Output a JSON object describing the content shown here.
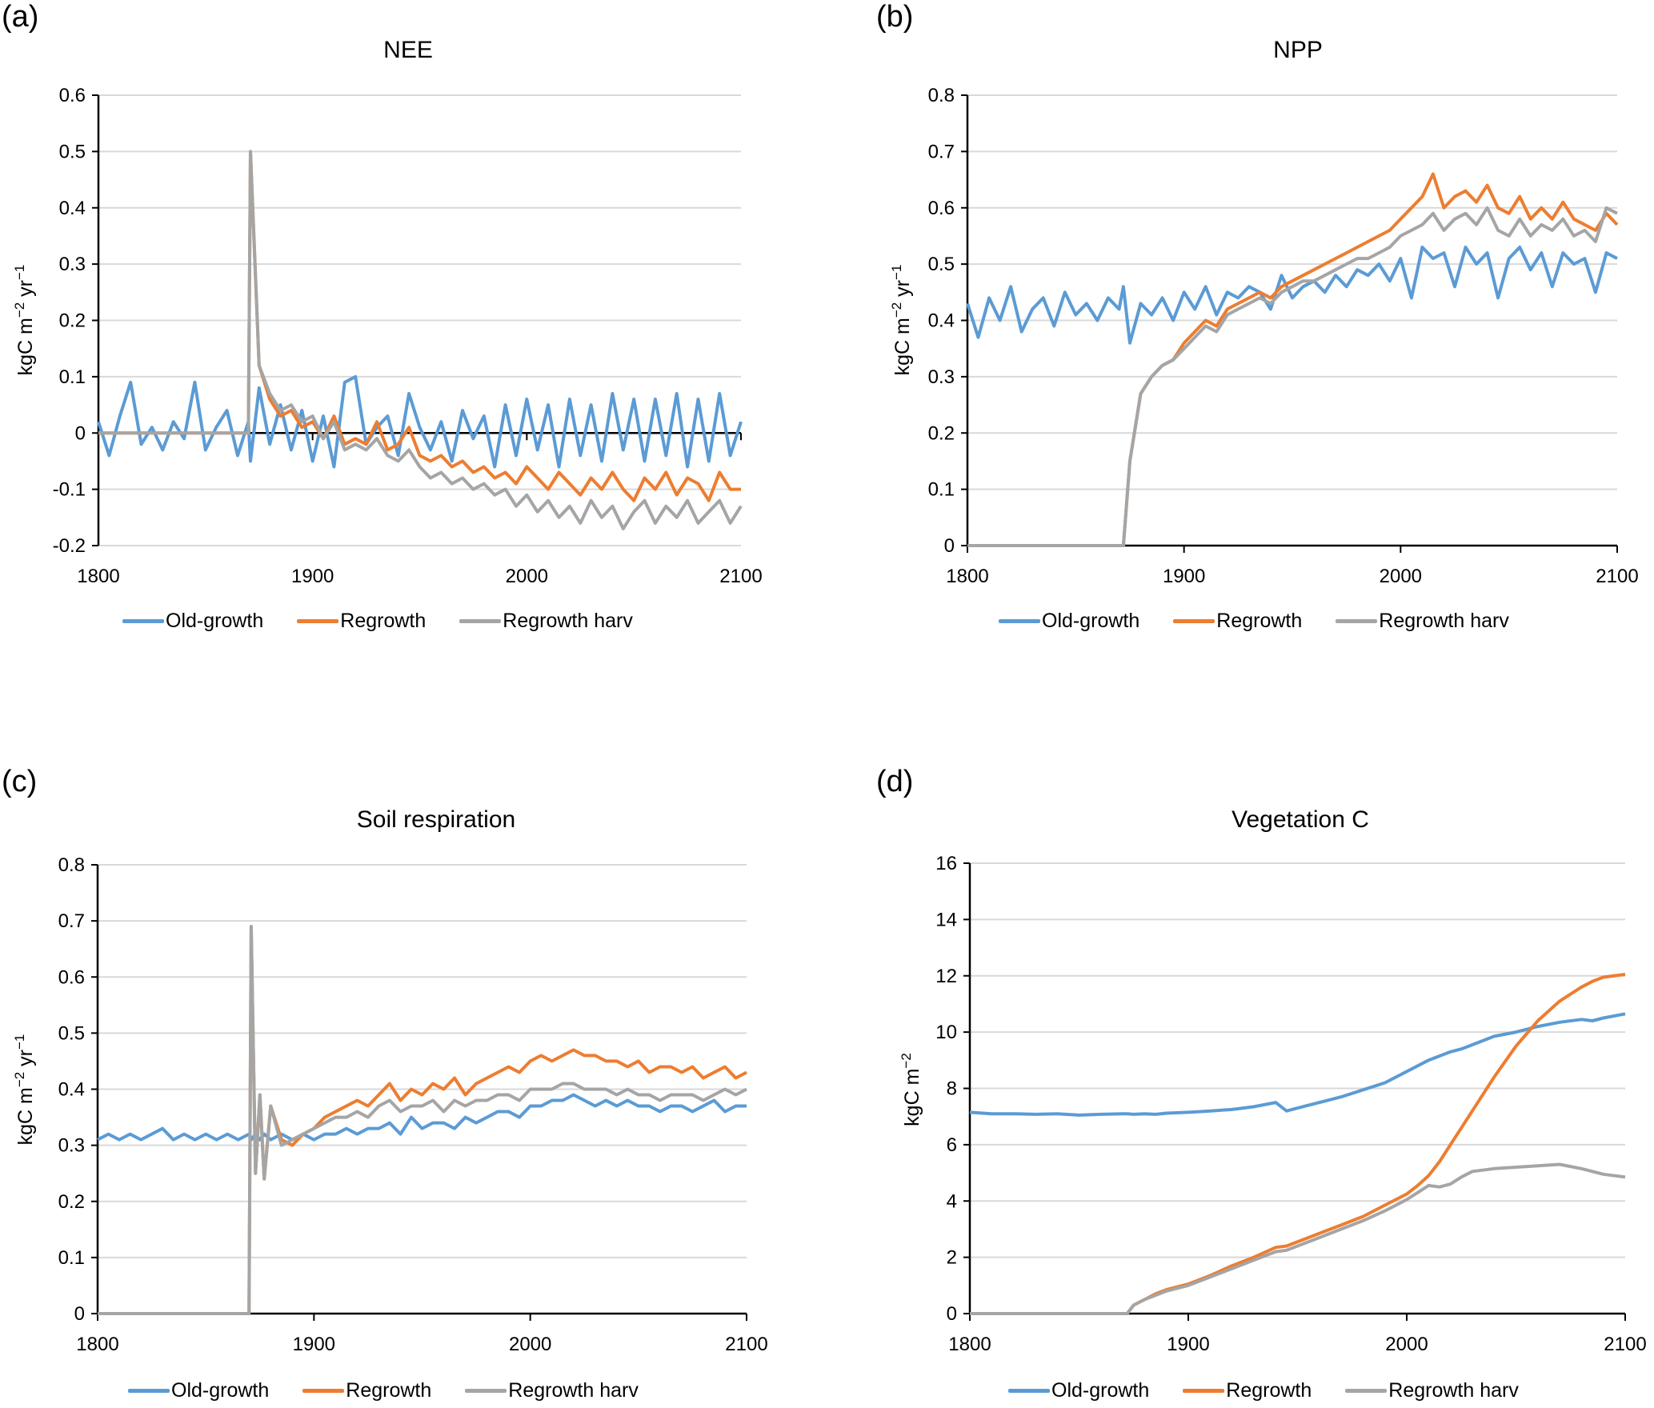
{
  "figure": {
    "legend_labels": [
      "Old-growth",
      "Regrowth",
      "Regrowth harv"
    ],
    "series_colors": {
      "Old-growth": "#5B9BD5",
      "Regrowth": "#ED7D31",
      "Regrowth harv": "#A5A5A5"
    }
  },
  "chart_data": [
    {
      "panel": "(a)",
      "type": "line",
      "title": "NEE",
      "xlabel": "",
      "ylabel": "kgC m-2 yr-1",
      "xlim": [
        1800,
        2100
      ],
      "ylim": [
        -0.2,
        0.6
      ],
      "xticks": [
        1800,
        1900,
        2000,
        2100
      ],
      "yticks": [
        -0.2,
        -0.1,
        0,
        0.1,
        0.2,
        0.3,
        0.4,
        0.5,
        0.6
      ],
      "ytick_labels": [
        "-0.2",
        "-0.1",
        "0",
        "0.1",
        "0.2",
        "0.3",
        "0.4",
        "0.5",
        "0.6"
      ],
      "zero_line": true,
      "grid": true,
      "legend": "bottom",
      "x": [
        1800,
        1805,
        1810,
        1815,
        1820,
        1825,
        1830,
        1835,
        1840,
        1845,
        1850,
        1855,
        1860,
        1865,
        1870,
        1871,
        1875,
        1880,
        1885,
        1890,
        1895,
        1900,
        1905,
        1910,
        1915,
        1920,
        1925,
        1930,
        1935,
        1940,
        1945,
        1950,
        1955,
        1960,
        1965,
        1970,
        1975,
        1980,
        1985,
        1990,
        1995,
        2000,
        2005,
        2010,
        2015,
        2020,
        2025,
        2030,
        2035,
        2040,
        2045,
        2050,
        2055,
        2060,
        2065,
        2070,
        2075,
        2080,
        2085,
        2090,
        2095,
        2100
      ],
      "series": [
        {
          "name": "Old-growth",
          "values": [
            0.02,
            -0.04,
            0.03,
            0.09,
            -0.02,
            0.01,
            -0.03,
            0.02,
            -0.01,
            0.09,
            -0.03,
            0.01,
            0.04,
            -0.04,
            0.02,
            -0.05,
            0.08,
            -0.02,
            0.05,
            -0.03,
            0.04,
            -0.05,
            0.03,
            -0.06,
            0.09,
            0.1,
            -0.02,
            0.01,
            0.03,
            -0.04,
            0.07,
            0.01,
            -0.03,
            0.02,
            -0.05,
            0.04,
            -0.01,
            0.03,
            -0.06,
            0.05,
            -0.04,
            0.06,
            -0.03,
            0.05,
            -0.06,
            0.06,
            -0.04,
            0.05,
            -0.05,
            0.07,
            -0.03,
            0.06,
            -0.05,
            0.06,
            -0.04,
            0.07,
            -0.06,
            0.06,
            -0.05,
            0.07,
            -0.04,
            0.02
          ]
        },
        {
          "name": "Regrowth",
          "values": [
            0,
            0,
            0,
            0,
            0,
            0,
            0,
            0,
            0,
            0,
            0,
            0,
            0,
            0,
            0,
            0.5,
            0.12,
            0.06,
            0.03,
            0.04,
            0.01,
            0.02,
            -0.01,
            0.03,
            -0.02,
            -0.01,
            -0.02,
            0.02,
            -0.03,
            -0.02,
            0.01,
            -0.04,
            -0.05,
            -0.04,
            -0.06,
            -0.05,
            -0.07,
            -0.06,
            -0.08,
            -0.07,
            -0.09,
            -0.06,
            -0.08,
            -0.1,
            -0.07,
            -0.09,
            -0.11,
            -0.08,
            -0.1,
            -0.07,
            -0.1,
            -0.12,
            -0.08,
            -0.1,
            -0.07,
            -0.11,
            -0.08,
            -0.09,
            -0.12,
            -0.07,
            -0.1,
            -0.1
          ]
        },
        {
          "name": "Regrowth harv",
          "values": [
            0,
            0,
            0,
            0,
            0,
            0,
            0,
            0,
            0,
            0,
            0,
            0,
            0,
            0,
            0,
            0.5,
            0.12,
            0.07,
            0.04,
            0.05,
            0.02,
            0.03,
            -0.01,
            0.02,
            -0.03,
            -0.02,
            -0.03,
            -0.01,
            -0.04,
            -0.05,
            -0.03,
            -0.06,
            -0.08,
            -0.07,
            -0.09,
            -0.08,
            -0.1,
            -0.09,
            -0.11,
            -0.1,
            -0.13,
            -0.11,
            -0.14,
            -0.12,
            -0.15,
            -0.13,
            -0.16,
            -0.12,
            -0.15,
            -0.13,
            -0.17,
            -0.14,
            -0.12,
            -0.16,
            -0.13,
            -0.15,
            -0.12,
            -0.16,
            -0.14,
            -0.12,
            -0.16,
            -0.13
          ]
        }
      ]
    },
    {
      "panel": "(b)",
      "type": "line",
      "title": "NPP",
      "xlabel": "",
      "ylabel": "kgC m-2 yr-1",
      "xlim": [
        1800,
        2100
      ],
      "ylim": [
        0,
        0.8
      ],
      "xticks": [
        1800,
        1900,
        2000,
        2100
      ],
      "yticks": [
        0,
        0.1,
        0.2,
        0.3,
        0.4,
        0.5,
        0.6,
        0.7,
        0.8
      ],
      "ytick_labels": [
        "0",
        "0.1",
        "0.2",
        "0.3",
        "0.4",
        "0.5",
        "0.6",
        "0.7",
        "0.8"
      ],
      "zero_line": false,
      "grid": true,
      "legend": "bottom",
      "x": [
        1800,
        1805,
        1810,
        1815,
        1820,
        1825,
        1830,
        1835,
        1840,
        1845,
        1850,
        1855,
        1860,
        1865,
        1870,
        1872,
        1875,
        1880,
        1885,
        1890,
        1895,
        1900,
        1905,
        1910,
        1915,
        1920,
        1925,
        1930,
        1935,
        1940,
        1945,
        1950,
        1955,
        1960,
        1965,
        1970,
        1975,
        1980,
        1985,
        1990,
        1995,
        2000,
        2005,
        2010,
        2015,
        2020,
        2025,
        2030,
        2035,
        2040,
        2045,
        2050,
        2055,
        2060,
        2065,
        2070,
        2075,
        2080,
        2085,
        2090,
        2095,
        2100
      ],
      "series": [
        {
          "name": "Old-growth",
          "values": [
            0.43,
            0.37,
            0.44,
            0.4,
            0.46,
            0.38,
            0.42,
            0.44,
            0.39,
            0.45,
            0.41,
            0.43,
            0.4,
            0.44,
            0.42,
            0.46,
            0.36,
            0.43,
            0.41,
            0.44,
            0.4,
            0.45,
            0.42,
            0.46,
            0.41,
            0.45,
            0.44,
            0.46,
            0.45,
            0.42,
            0.48,
            0.44,
            0.46,
            0.47,
            0.45,
            0.48,
            0.46,
            0.49,
            0.48,
            0.5,
            0.47,
            0.51,
            0.44,
            0.53,
            0.51,
            0.52,
            0.46,
            0.53,
            0.5,
            0.52,
            0.44,
            0.51,
            0.53,
            0.49,
            0.52,
            0.46,
            0.52,
            0.5,
            0.51,
            0.45,
            0.52,
            0.51
          ]
        },
        {
          "name": "Regrowth",
          "values": [
            0,
            0,
            0,
            0,
            0,
            0,
            0,
            0,
            0,
            0,
            0,
            0,
            0,
            0,
            0,
            0,
            0.15,
            0.27,
            0.3,
            0.32,
            0.33,
            0.36,
            0.38,
            0.4,
            0.39,
            0.42,
            0.43,
            0.44,
            0.45,
            0.44,
            0.46,
            0.47,
            0.48,
            0.49,
            0.5,
            0.51,
            0.52,
            0.53,
            0.54,
            0.55,
            0.56,
            0.58,
            0.6,
            0.62,
            0.66,
            0.6,
            0.62,
            0.63,
            0.61,
            0.64,
            0.6,
            0.59,
            0.62,
            0.58,
            0.6,
            0.58,
            0.61,
            0.58,
            0.57,
            0.56,
            0.59,
            0.57
          ]
        },
        {
          "name": "Regrowth harv",
          "values": [
            0,
            0,
            0,
            0,
            0,
            0,
            0,
            0,
            0,
            0,
            0,
            0,
            0,
            0,
            0,
            0,
            0.15,
            0.27,
            0.3,
            0.32,
            0.33,
            0.35,
            0.37,
            0.39,
            0.38,
            0.41,
            0.42,
            0.43,
            0.44,
            0.43,
            0.45,
            0.46,
            0.47,
            0.47,
            0.48,
            0.49,
            0.5,
            0.51,
            0.51,
            0.52,
            0.53,
            0.55,
            0.56,
            0.57,
            0.59,
            0.56,
            0.58,
            0.59,
            0.57,
            0.6,
            0.56,
            0.55,
            0.58,
            0.55,
            0.57,
            0.56,
            0.58,
            0.55,
            0.56,
            0.54,
            0.6,
            0.59
          ]
        }
      ]
    },
    {
      "panel": "(c)",
      "type": "line",
      "title": "Soil respiration",
      "xlabel": "",
      "ylabel": "kgC m-2 yr-1",
      "xlim": [
        1800,
        2100
      ],
      "ylim": [
        0,
        0.8
      ],
      "xticks": [
        1800,
        1900,
        2000,
        2100
      ],
      "yticks": [
        0,
        0.1,
        0.2,
        0.3,
        0.4,
        0.5,
        0.6,
        0.7,
        0.8
      ],
      "ytick_labels": [
        "0",
        "0.1",
        "0.2",
        "0.3",
        "0.4",
        "0.5",
        "0.6",
        "0.7",
        "0.8"
      ],
      "zero_line": false,
      "grid": true,
      "legend": "bottom",
      "x": [
        1800,
        1805,
        1810,
        1815,
        1820,
        1825,
        1830,
        1835,
        1840,
        1845,
        1850,
        1855,
        1860,
        1865,
        1870,
        1871,
        1873,
        1875,
        1877,
        1880,
        1885,
        1890,
        1895,
        1900,
        1905,
        1910,
        1915,
        1920,
        1925,
        1930,
        1935,
        1940,
        1945,
        1950,
        1955,
        1960,
        1965,
        1970,
        1975,
        1980,
        1985,
        1990,
        1995,
        2000,
        2005,
        2010,
        2015,
        2020,
        2025,
        2030,
        2035,
        2040,
        2045,
        2050,
        2055,
        2060,
        2065,
        2070,
        2075,
        2080,
        2085,
        2090,
        2095,
        2100
      ],
      "series": [
        {
          "name": "Old-growth",
          "values": [
            0.31,
            0.32,
            0.31,
            0.32,
            0.31,
            0.32,
            0.33,
            0.31,
            0.32,
            0.31,
            0.32,
            0.31,
            0.32,
            0.31,
            0.32,
            0.31,
            0.32,
            0.31,
            0.32,
            0.31,
            0.32,
            0.31,
            0.32,
            0.31,
            0.32,
            0.32,
            0.33,
            0.32,
            0.33,
            0.33,
            0.34,
            0.32,
            0.35,
            0.33,
            0.34,
            0.34,
            0.33,
            0.35,
            0.34,
            0.35,
            0.36,
            0.36,
            0.35,
            0.37,
            0.37,
            0.38,
            0.38,
            0.39,
            0.38,
            0.37,
            0.38,
            0.37,
            0.38,
            0.37,
            0.37,
            0.36,
            0.37,
            0.37,
            0.36,
            0.37,
            0.38,
            0.36,
            0.37,
            0.37
          ]
        },
        {
          "name": "Regrowth",
          "values": [
            0,
            0,
            0,
            0,
            0,
            0,
            0,
            0,
            0,
            0,
            0,
            0,
            0,
            0,
            0,
            0.69,
            0.25,
            0.39,
            0.24,
            0.37,
            0.31,
            0.3,
            0.32,
            0.33,
            0.35,
            0.36,
            0.37,
            0.38,
            0.37,
            0.39,
            0.41,
            0.38,
            0.4,
            0.39,
            0.41,
            0.4,
            0.42,
            0.39,
            0.41,
            0.42,
            0.43,
            0.44,
            0.43,
            0.45,
            0.46,
            0.45,
            0.46,
            0.47,
            0.46,
            0.46,
            0.45,
            0.45,
            0.44,
            0.45,
            0.43,
            0.44,
            0.44,
            0.43,
            0.44,
            0.42,
            0.43,
            0.44,
            0.42,
            0.43
          ]
        },
        {
          "name": "Regrowth harv",
          "values": [
            0,
            0,
            0,
            0,
            0,
            0,
            0,
            0,
            0,
            0,
            0,
            0,
            0,
            0,
            0,
            0.69,
            0.25,
            0.39,
            0.24,
            0.37,
            0.3,
            0.31,
            0.32,
            0.33,
            0.34,
            0.35,
            0.35,
            0.36,
            0.35,
            0.37,
            0.38,
            0.36,
            0.37,
            0.37,
            0.38,
            0.36,
            0.38,
            0.37,
            0.38,
            0.38,
            0.39,
            0.39,
            0.38,
            0.4,
            0.4,
            0.4,
            0.41,
            0.41,
            0.4,
            0.4,
            0.4,
            0.39,
            0.4,
            0.39,
            0.39,
            0.38,
            0.39,
            0.39,
            0.39,
            0.38,
            0.39,
            0.4,
            0.39,
            0.4
          ]
        }
      ]
    },
    {
      "panel": "(d)",
      "type": "line",
      "title": "Vegetation C",
      "xlabel": "",
      "ylabel": "kgC m-2",
      "xlim": [
        1800,
        2100
      ],
      "ylim": [
        0,
        16
      ],
      "xticks": [
        1800,
        1900,
        2000,
        2100
      ],
      "yticks": [
        0,
        2,
        4,
        6,
        8,
        10,
        12,
        14,
        16
      ],
      "ytick_labels": [
        "0",
        "2",
        "4",
        "6",
        "8",
        "10",
        "12",
        "14",
        "16"
      ],
      "zero_line": false,
      "grid": true,
      "legend": "bottom",
      "x": [
        1800,
        1810,
        1820,
        1830,
        1840,
        1850,
        1860,
        1870,
        1872,
        1875,
        1880,
        1885,
        1890,
        1900,
        1910,
        1920,
        1930,
        1940,
        1945,
        1950,
        1960,
        1970,
        1980,
        1990,
        2000,
        2005,
        2010,
        2015,
        2020,
        2025,
        2030,
        2040,
        2050,
        2060,
        2070,
        2080,
        2085,
        2090,
        2100
      ],
      "series": [
        {
          "name": "Old-growth",
          "values": [
            7.15,
            7.1,
            7.1,
            7.08,
            7.1,
            7.05,
            7.08,
            7.1,
            7.1,
            7.08,
            7.1,
            7.08,
            7.12,
            7.15,
            7.2,
            7.25,
            7.35,
            7.5,
            7.2,
            7.3,
            7.5,
            7.7,
            7.95,
            8.2,
            8.6,
            8.8,
            9.0,
            9.15,
            9.3,
            9.4,
            9.55,
            9.85,
            10.0,
            10.2,
            10.35,
            10.45,
            10.4,
            10.5,
            10.65
          ]
        },
        {
          "name": "Regrowth",
          "values": [
            0,
            0,
            0,
            0,
            0,
            0,
            0,
            0,
            0,
            0.3,
            0.5,
            0.7,
            0.85,
            1.05,
            1.35,
            1.7,
            2.0,
            2.35,
            2.4,
            2.55,
            2.85,
            3.15,
            3.45,
            3.85,
            4.25,
            4.55,
            4.9,
            5.4,
            6.0,
            6.6,
            7.2,
            8.4,
            9.5,
            10.4,
            11.1,
            11.6,
            11.8,
            11.95,
            12.05
          ]
        },
        {
          "name": "Regrowth harv",
          "values": [
            0,
            0,
            0,
            0,
            0,
            0,
            0,
            0,
            0,
            0.3,
            0.5,
            0.65,
            0.8,
            1.0,
            1.3,
            1.6,
            1.9,
            2.2,
            2.25,
            2.4,
            2.7,
            3.0,
            3.3,
            3.65,
            4.05,
            4.3,
            4.55,
            4.5,
            4.6,
            4.85,
            5.05,
            5.15,
            5.2,
            5.25,
            5.3,
            5.15,
            5.05,
            4.95,
            4.85
          ]
        }
      ]
    }
  ]
}
